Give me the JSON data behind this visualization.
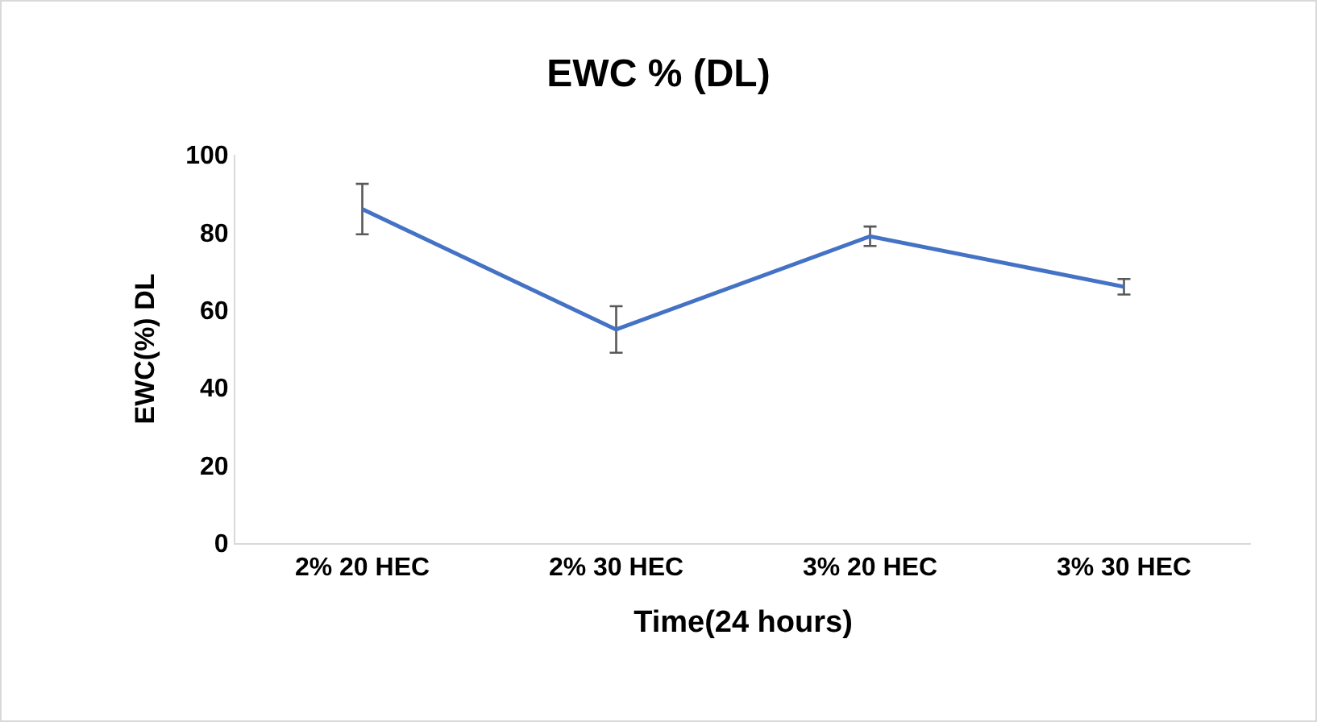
{
  "chart_data": {
    "type": "line",
    "title": "EWC % (DL)",
    "xlabel": "Time(24 hours)",
    "ylabel": "EWC(%) DL",
    "categories": [
      "2% 20 HEC",
      "2% 30 HEC",
      "3% 20 HEC",
      "3% 30 HEC"
    ],
    "series": [
      {
        "color": "#4472c4",
        "values": [
          86,
          55,
          79,
          66
        ],
        "errors": [
          6.5,
          6,
          2.5,
          2
        ]
      }
    ],
    "ylim": [
      0,
      100
    ],
    "yticks": [
      0,
      20,
      40,
      60,
      80,
      100
    ],
    "grid": false,
    "line_style": "solid"
  }
}
